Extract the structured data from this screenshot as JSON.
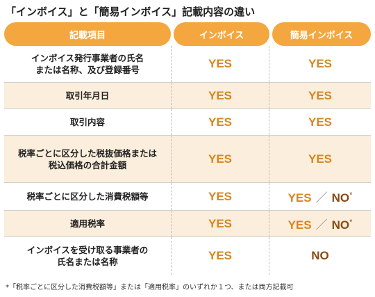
{
  "title": "「インボイス」と「簡易インボイス」記載内容の違い",
  "headers": [
    "記載項目",
    "インボイス",
    "簡易インボイス"
  ],
  "rows": [
    {
      "item": "インボイス発行事業者の氏名\nまたは名称、及び登録番号",
      "invoice": "YES",
      "simple": "YES"
    },
    {
      "item": "取引年月日",
      "invoice": "YES",
      "simple": "YES"
    },
    {
      "item": "取引内容",
      "invoice": "YES",
      "simple": "YES"
    },
    {
      "item": "税率ごとに区分した税抜価格または\n税込価格の合計金額",
      "invoice": "YES",
      "simple": "YES"
    },
    {
      "item": "税率ごとに区分した消費税額等",
      "invoice": "YES",
      "simple_yes": "YES",
      "simple_slash": "／",
      "simple_no": "NO",
      "simple_mark": "*"
    },
    {
      "item": "適用税率",
      "invoice": "YES",
      "simple_yes": "YES",
      "simple_slash": "／",
      "simple_no": "NO",
      "simple_mark": "*"
    },
    {
      "item": "インボイスを受け取る事業者の\n氏名または名称",
      "invoice": "YES",
      "simple": "NO"
    }
  ],
  "footnote": "*「税率ごとに区分した消費税額等」または「適用税率」のいずれか１つ、または両方記載可",
  "colors": {
    "header_bg": "#F4A73E",
    "shaded_row": "#FBEEDC",
    "yes": "#D8861F",
    "no": "#8A4A12"
  }
}
